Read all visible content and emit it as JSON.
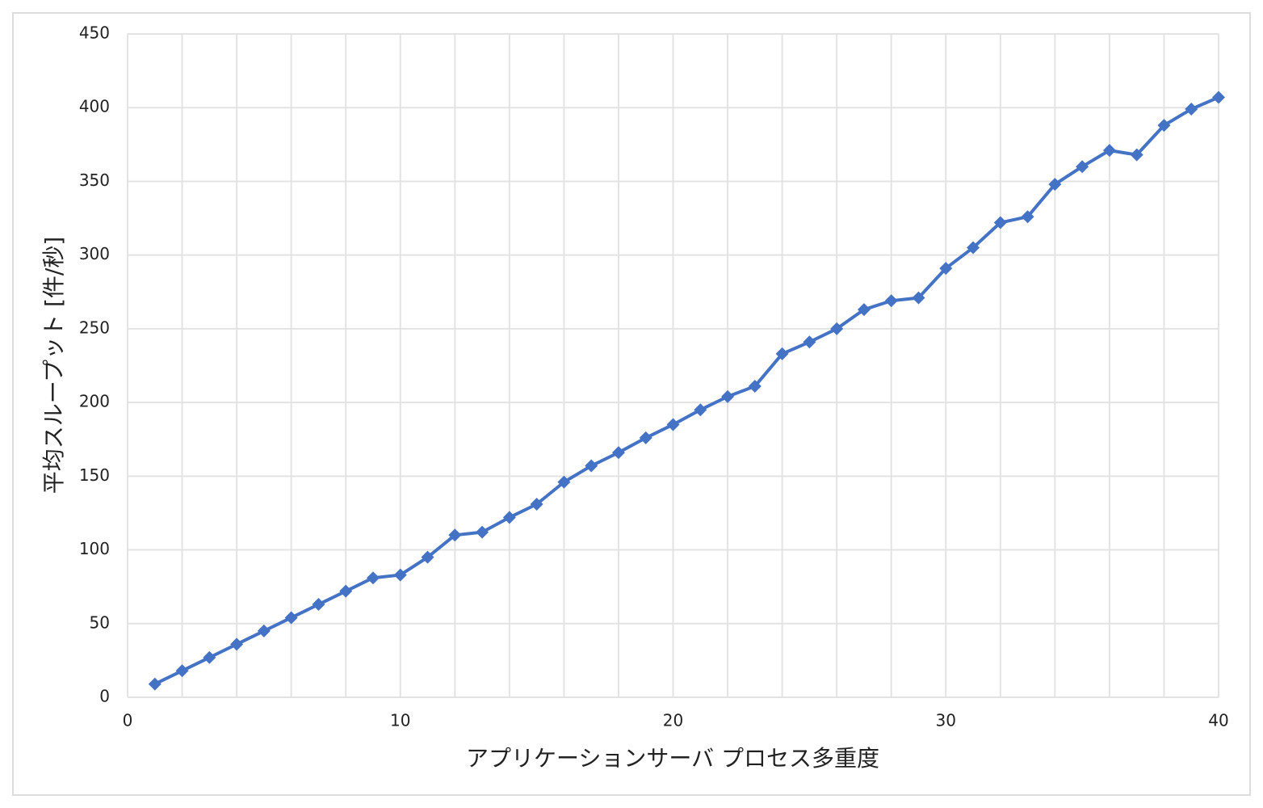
{
  "chart_data": {
    "type": "line",
    "x_label": "アプリケーションサーバ プロセス多重度",
    "y_label": "平均スループット [件/秒]",
    "x": [
      1,
      2,
      3,
      4,
      5,
      6,
      7,
      8,
      9,
      10,
      11,
      12,
      13,
      14,
      15,
      16,
      17,
      18,
      19,
      20,
      21,
      22,
      23,
      24,
      25,
      26,
      27,
      28,
      29,
      30,
      31,
      32,
      33,
      34,
      35,
      36,
      37,
      38,
      39,
      40
    ],
    "series": [
      {
        "color": "#4472c4",
        "marker": "diamond",
        "values": [
          9,
          18,
          27,
          36,
          45,
          54,
          63,
          72,
          81,
          83,
          95,
          110,
          112,
          122,
          131,
          146,
          157,
          166,
          176,
          185,
          195,
          204,
          211,
          233,
          241,
          250,
          263,
          269,
          271,
          291,
          305,
          322,
          326,
          348,
          360,
          371,
          368,
          388,
          399,
          407
        ]
      }
    ],
    "xlim": [
      0,
      40
    ],
    "xticks": [
      0,
      10,
      20,
      30,
      40
    ],
    "xgrid": [
      2,
      4,
      6,
      8,
      12,
      14,
      16,
      18,
      22,
      24,
      26,
      28,
      32,
      34,
      36,
      38
    ],
    "ylim": [
      0,
      450
    ],
    "yticks": [
      0,
      50,
      100,
      150,
      200,
      250,
      300,
      350,
      400,
      450
    ],
    "grid": true
  }
}
